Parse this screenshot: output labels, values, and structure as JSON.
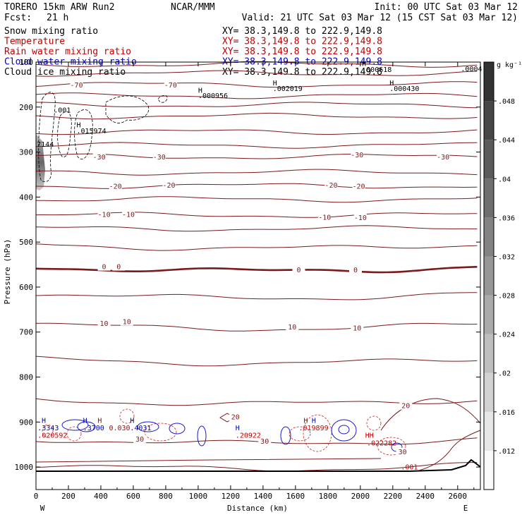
{
  "header": {
    "model": "TORERO   15km ARW   Run2",
    "center": "NCAR/MMM",
    "init": "Init: 00 UTC Sat 03 Mar 12",
    "fcst_label": "Fcst:",
    "fcst_value": "21 h",
    "valid": "Valid: 21 UTC Sat 03 Mar 12 (15 CST Sat 03 Mar 12)"
  },
  "fields": [
    {
      "name": "Snow mixing ratio",
      "xy": "XY=  38.3,149.8 to 222.9,149.8",
      "color": "#000000"
    },
    {
      "name": "Temperature",
      "xy": "XY=  38.3,149.8 to 222.9,149.8",
      "color": "#c00000"
    },
    {
      "name": "Rain water mixing ratio",
      "xy": "XY=  38.3,149.8 to 222.9,149.8",
      "color": "#c00000"
    },
    {
      "name": "Cloud water mixing ratio",
      "xy": "XY=  38.3,149.8 to 222.9,149.8",
      "color": "#0000c0"
    },
    {
      "name": "Cloud ice mixing ratio",
      "xy": "XY=  38.3,149.8 to 222.9,149.8",
      "color": "#000000"
    }
  ],
  "chart_data": {
    "type": "cross-section",
    "xlabel": "Distance (km)",
    "ylabel": "Pressure (hPa)",
    "xlim": [
      0,
      2740
    ],
    "ylim": [
      1050,
      100
    ],
    "x_ticks": [
      0,
      200,
      400,
      600,
      800,
      1000,
      1200,
      1400,
      1600,
      1800,
      2000,
      2200,
      2400,
      2600
    ],
    "x_tick_labels": [
      "0",
      "200",
      "400",
      "600",
      "800",
      "1000",
      "1200",
      "1400",
      "1600",
      "1800",
      "2000",
      "2200",
      "2400",
      "2600"
    ],
    "y_ticks": [
      100,
      200,
      300,
      400,
      500,
      600,
      700,
      800,
      900,
      1000
    ],
    "y_tick_labels": [
      "100",
      "200",
      "300",
      "400",
      "500",
      "600",
      "700",
      "800",
      "900",
      "1000"
    ],
    "west_label": "W",
    "east_label": "E",
    "colorbar": {
      "unit": "g kg⁻¹",
      "ticks": [
        0.012,
        0.016,
        0.02,
        0.024,
        0.028,
        0.032,
        0.036,
        0.04,
        0.044,
        0.048
      ],
      "tick_labels": [
        ".012",
        ".016",
        ".02",
        ".024",
        ".028",
        ".032",
        ".036",
        ".04",
        ".044",
        ".048"
      ],
      "range": [
        0.008,
        0.052
      ]
    },
    "temperature_labels": [
      {
        "value": "-70",
        "x": 250,
        "p": 150
      },
      {
        "value": "-70",
        "x": 830,
        "p": 150
      },
      {
        "value": "-30",
        "x": 390,
        "p": 310
      },
      {
        "value": "-30",
        "x": 760,
        "p": 310
      },
      {
        "value": "-30",
        "x": 1980,
        "p": 305
      },
      {
        "value": "-30",
        "x": 2510,
        "p": 310
      },
      {
        "value": "-20",
        "x": 490,
        "p": 375
      },
      {
        "value": "-20",
        "x": 820,
        "p": 373
      },
      {
        "value": "-20",
        "x": 1820,
        "p": 373
      },
      {
        "value": "-20",
        "x": 1990,
        "p": 375
      },
      {
        "value": "-10",
        "x": 420,
        "p": 438
      },
      {
        "value": "-10",
        "x": 570,
        "p": 438
      },
      {
        "value": "-10",
        "x": 1780,
        "p": 444
      },
      {
        "value": "-10",
        "x": 2000,
        "p": 445
      },
      {
        "value": "0",
        "x": 420,
        "p": 554
      },
      {
        "value": "0",
        "x": 510,
        "p": 554
      },
      {
        "value": "0",
        "x": 1620,
        "p": 561
      },
      {
        "value": "0",
        "x": 1970,
        "p": 561
      },
      {
        "value": "10",
        "x": 420,
        "p": 680
      },
      {
        "value": "10",
        "x": 560,
        "p": 676
      },
      {
        "value": "10",
        "x": 1580,
        "p": 688
      },
      {
        "value": "10",
        "x": 1980,
        "p": 690
      },
      {
        "value": "20",
        "x": 2280,
        "p": 863
      },
      {
        "value": "20",
        "x": 1230,
        "p": 888
      },
      {
        "value": "30",
        "x": 640,
        "p": 937
      },
      {
        "value": "30",
        "x": 1410,
        "p": 942
      },
      {
        "value": "30",
        "x": 2260,
        "p": 965
      }
    ],
    "maxima_labels": [
      {
        "text": "H",
        "x": 1000,
        "p": 168,
        "color": "#000000"
      },
      {
        "text": ".000956",
        "x": 1000,
        "p": 180,
        "color": "#000000"
      },
      {
        "text": "H",
        "x": 1460,
        "p": 152,
        "color": "#000000"
      },
      {
        "text": ".002019",
        "x": 1460,
        "p": 164,
        "color": "#000000"
      },
      {
        "text": "H",
        "x": 2180,
        "p": 152,
        "color": "#000000"
      },
      {
        "text": ".000430",
        "x": 2180,
        "p": 164,
        "color": "#000000"
      },
      {
        "text": "H",
        "x": 2010,
        "p": 109,
        "color": "#000000"
      },
      {
        "text": ".000618",
        "x": 2010,
        "p": 122,
        "color": "#000000"
      },
      {
        "text": ".0004",
        "x": 2620,
        "p": 120,
        "color": "#000000"
      },
      {
        "text": ".001",
        "x": 110,
        "p": 212,
        "color": "#000000"
      },
      {
        "text": "H",
        "x": 250,
        "p": 245,
        "color": "#000000"
      },
      {
        "text": ".015974",
        "x": 250,
        "p": 258,
        "color": "#000000"
      },
      {
        "text": "7144",
        "x": 5,
        "p": 288,
        "color": "#000000"
      },
      {
        "text": "H",
        "x": 35,
        "p": 902,
        "color": "#0000c0"
      },
      {
        "text": ".3343",
        "x": 10,
        "p": 918,
        "color": "#0000c0"
      },
      {
        "text": ".020592",
        "x": 10,
        "p": 935,
        "color": "#c00000"
      },
      {
        "text": "H",
        "x": 290,
        "p": 902,
        "color": "#0000c0"
      },
      {
        "text": "H",
        "x": 380,
        "p": 902,
        "color": "#c00000"
      },
      {
        "text": ".3700",
        "x": 290,
        "p": 918,
        "color": "#0000c0"
      },
      {
        "text": "0.030",
        "x": 450,
        "p": 918,
        "color": "#c00000"
      },
      {
        "text": "H",
        "x": 580,
        "p": 902,
        "color": "#0000c0"
      },
      {
        "text": ".4031",
        "x": 580,
        "p": 918,
        "color": "#0000c0"
      },
      {
        "text": "H",
        "x": 1230,
        "p": 918,
        "color": "#0000c0"
      },
      {
        "text": ".20922",
        "x": 1230,
        "p": 935,
        "color": "#c00000"
      },
      {
        "text": "H",
        "x": 1650,
        "p": 902,
        "color": "#c00000"
      },
      {
        "text": "H",
        "x": 1700,
        "p": 902,
        "color": "#0000c0"
      },
      {
        "text": ".019899",
        "x": 1620,
        "p": 918,
        "color": "#c00000"
      },
      {
        "text": "HH",
        "x": 2030,
        "p": 935,
        "color": "#c00000"
      },
      {
        "text": ".022282",
        "x": 2040,
        "p": 952,
        "color": "#c00000"
      },
      {
        "text": ".001",
        "x": 2250,
        "p": 1005,
        "color": "#c00000"
      }
    ],
    "grid": false,
    "legend": "top-left"
  }
}
